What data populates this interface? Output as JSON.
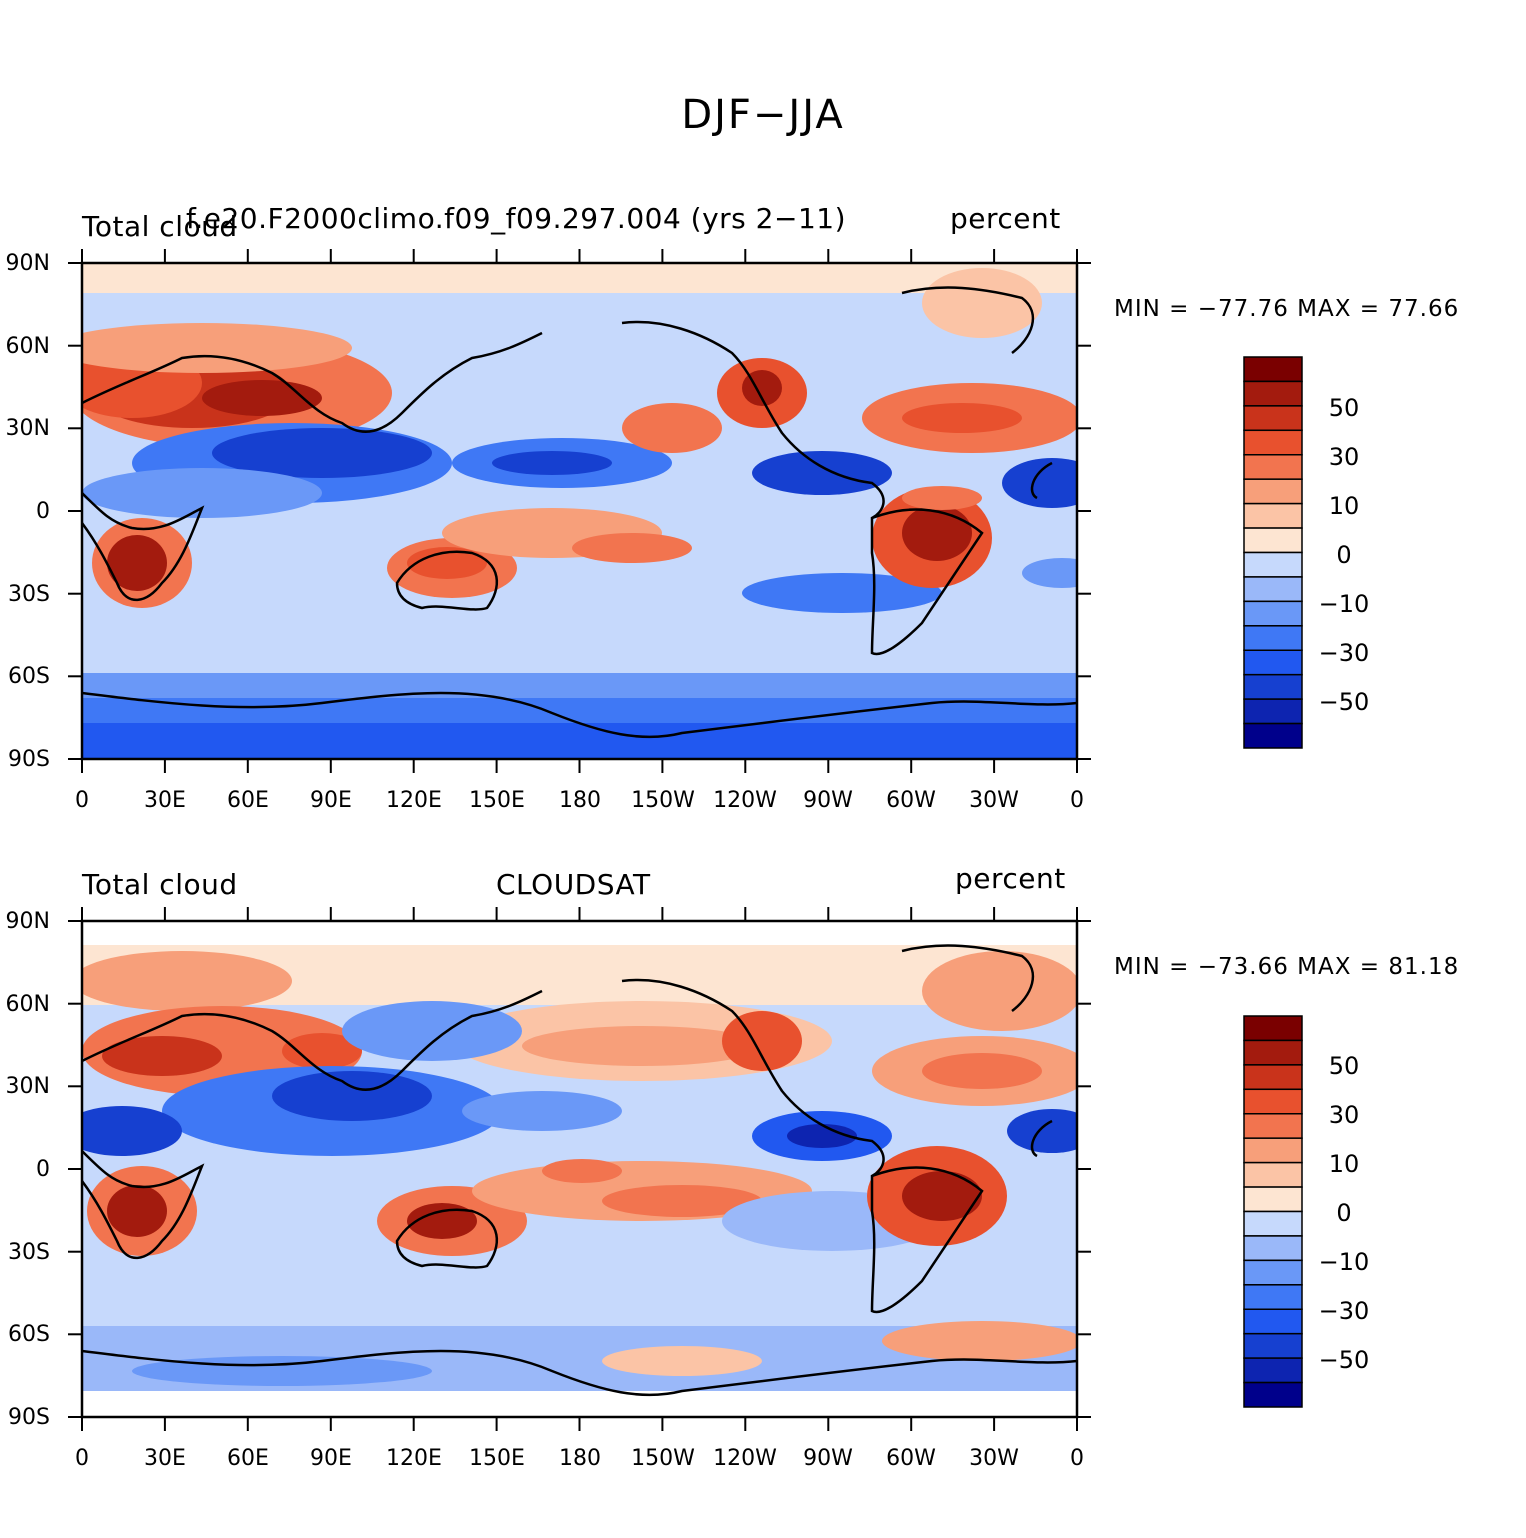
{
  "title": "DJF−JJA",
  "colors": {
    "levels": [
      "#00008b",
      "#0d24b0",
      "#1640d0",
      "#2158f0",
      "#3f78f5",
      "#6a98f7",
      "#9ab8f9",
      "#c6d9fc",
      "#fde5d2",
      "#fbc4a6",
      "#f79f7a",
      "#f2744f",
      "#e8512e",
      "#c9331b",
      "#a31b0e",
      "#7a0000"
    ],
    "land_outline": "#000000"
  },
  "colorbar": {
    "labels": [
      "50",
      "30",
      "10",
      "0",
      "−10",
      "−30",
      "−50"
    ]
  },
  "panels": [
    {
      "left": "Total cloud",
      "center": "f.e20.F2000climo.f09_f09.297.004 (yrs 2−11)",
      "right": "percent",
      "min_max": "MIN = −77.76  MAX =   77.66",
      "lat_labels": [
        "90N",
        "60N",
        "30N",
        "0",
        "30S",
        "60S",
        "90S"
      ],
      "lon_labels": [
        "0",
        "30E",
        "60E",
        "90E",
        "120E",
        "150E",
        "180",
        "150W",
        "120W",
        "90W",
        "60W",
        "30W",
        "0"
      ]
    },
    {
      "left": "Total cloud",
      "center": "CLOUDSAT",
      "right": "percent",
      "min_max": "MIN = −73.66  MAX =   81.18",
      "lat_labels": [
        "90N",
        "60N",
        "30N",
        "0",
        "30S",
        "60S",
        "90S"
      ],
      "lon_labels": [
        "0",
        "30E",
        "60E",
        "90E",
        "120E",
        "150E",
        "180",
        "150W",
        "120W",
        "90W",
        "60W",
        "30W",
        "0"
      ]
    }
  ]
}
